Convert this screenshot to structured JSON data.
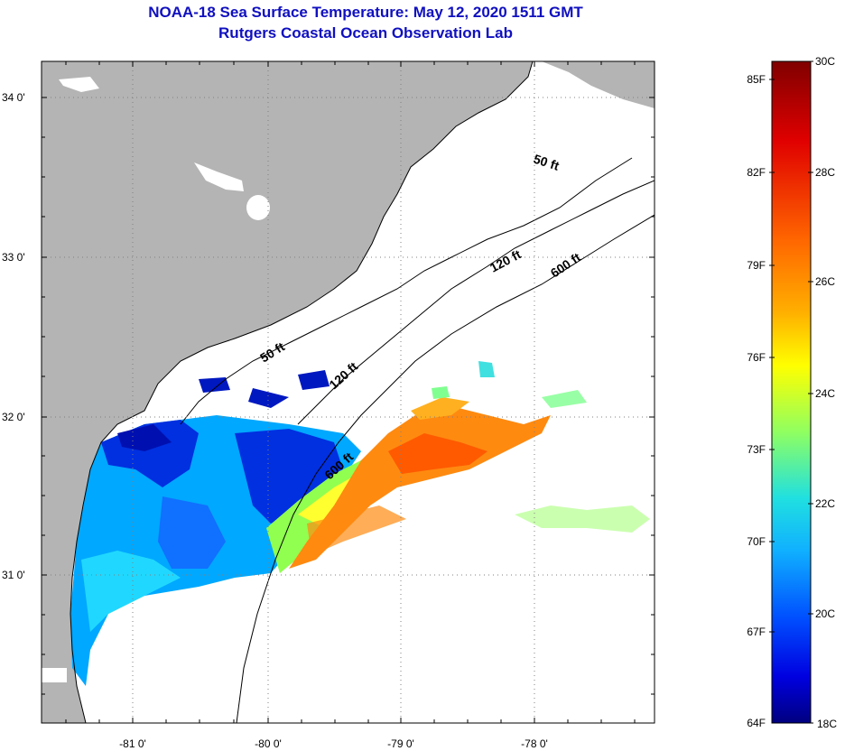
{
  "title": "NOAA-18 Sea Surface Temperature:  May 12, 2020 1511 GMT",
  "subtitle": "Rutgers Coastal Ocean Observation Lab",
  "map": {
    "lon_ticks": [
      "-81 0'",
      "-80 0'",
      "-79 0'",
      "-78 0'"
    ],
    "lat_ticks": [
      "34 0'",
      "33 0'",
      "32 0'",
      "31 0'"
    ],
    "contour_labels": [
      "50 ft",
      "120 ft",
      "600 ft",
      "50 ft",
      "120 ft",
      "600 ft"
    ],
    "colors": {
      "land": "#b4b4b4",
      "water_nodata": "#ffffff"
    }
  },
  "colorbar": {
    "f_labels": [
      "85F",
      "82F",
      "79F",
      "76F",
      "73F",
      "70F",
      "67F",
      "64F"
    ],
    "c_labels": [
      "30C",
      "28C",
      "26C",
      "24C",
      "22C",
      "20C",
      "18C"
    ],
    "stops": [
      "#800000",
      "#ff0000",
      "#ff9900",
      "#ffff00",
      "#80ff80",
      "#00ffff",
      "#0080ff",
      "#0000ff",
      "#000080"
    ]
  }
}
